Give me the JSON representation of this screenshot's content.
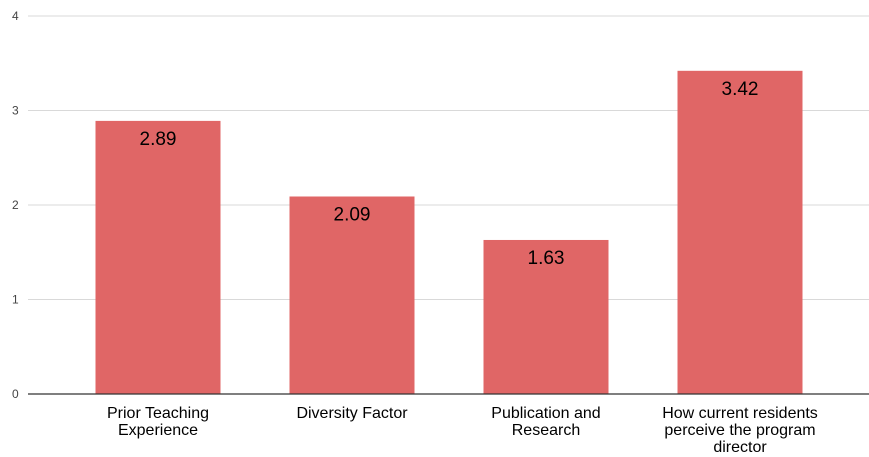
{
  "chart_data": {
    "type": "bar",
    "title": "",
    "xlabel": "",
    "ylabel": "",
    "categories": [
      [
        "Prior Teaching",
        "Experience"
      ],
      [
        "Diversity Factor"
      ],
      [
        "Publication and",
        "Research"
      ],
      [
        "How current residents",
        "perceive the program",
        "director"
      ]
    ],
    "values": [
      2.89,
      2.09,
      1.63,
      3.42
    ],
    "value_labels": [
      "2.89",
      "2.09",
      "1.63",
      "3.42"
    ],
    "ylim": [
      0,
      4
    ],
    "yticks": [
      "0",
      "1",
      "2",
      "3",
      "4"
    ],
    "grid": true,
    "legend": "none",
    "colors": {
      "bar": "#e06666",
      "grid": "#d9d9d9",
      "axis": "#333333"
    }
  }
}
